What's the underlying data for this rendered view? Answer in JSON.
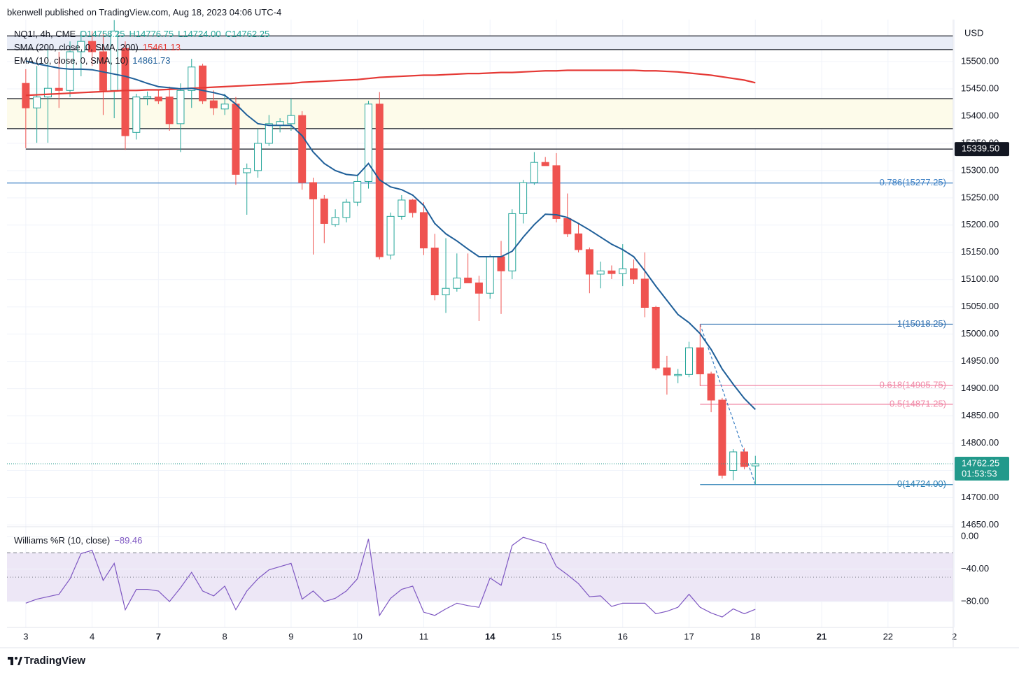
{
  "header": {
    "text": "bkenwell published on TradingView.com, Aug 18, 2023 04:06 UTC-4"
  },
  "footer": {
    "brand": "TradingView"
  },
  "chart_data": [
    {
      "type": "candlestick",
      "currency": "USD",
      "legend": {
        "symbol": "NQ1!, 4h, CME",
        "ohlc_labels": [
          "O14758.25",
          "H14776.75",
          "L14724.00",
          "C14762.25"
        ]
      },
      "x": [
        0,
        1,
        2,
        3,
        4,
        5,
        6,
        7,
        8,
        9,
        10,
        11,
        12,
        13,
        14,
        15,
        16,
        17,
        18,
        19,
        20,
        21,
        22,
        23,
        24,
        25,
        26,
        27,
        28,
        29,
        30,
        31,
        32,
        33,
        34,
        35,
        36,
        37,
        38,
        39,
        40,
        41,
        42,
        43,
        44,
        45,
        46,
        47,
        48,
        49,
        50,
        51,
        52,
        53,
        54,
        55,
        56,
        57,
        58,
        59,
        60,
        61,
        62,
        63,
        64,
        65,
        66
      ],
      "open": [
        15460,
        15415,
        15435,
        15451,
        15447,
        15518,
        15537,
        15518,
        15447,
        15524,
        15370,
        15433,
        15435,
        15435,
        15386,
        15447,
        15492,
        15428,
        15413,
        15422,
        15296,
        15300,
        15350,
        15383,
        15386,
        15401,
        15278,
        15248,
        15201,
        15214,
        15242,
        15280,
        15422,
        15145,
        15216,
        15246,
        15223,
        15158,
        15072,
        15084,
        15103,
        15094,
        15075,
        15142,
        15116,
        15221,
        15278,
        15315,
        15309,
        15212,
        15184,
        15155,
        15110,
        15116,
        15111,
        15120,
        15101,
        15049,
        14938,
        14924,
        14926,
        14975,
        14927,
        14879,
        14750,
        14784,
        14758.25
      ],
      "high": [
        15486,
        15492,
        15524,
        15518,
        15537,
        15556,
        15556,
        15556,
        15576,
        15537,
        15441,
        15445,
        15447,
        15454,
        15460,
        15505,
        15496,
        15447,
        15441,
        15435,
        15313,
        15377,
        15402,
        15396,
        15432,
        15409,
        15287,
        15255,
        15229,
        15248,
        15293,
        15428,
        15444,
        15223,
        15255,
        15248,
        15242,
        15184,
        15176,
        15148,
        15148,
        15107,
        15146,
        15171,
        15229,
        15283,
        15334,
        15325,
        15332,
        15258,
        15203,
        15159,
        15133,
        15126,
        15165,
        15137,
        15150,
        15052,
        14960,
        14936,
        14986,
        15018.25,
        14931,
        14883,
        14789,
        14791,
        14776.75
      ],
      "low": [
        15341,
        15351,
        15351,
        15415,
        15435,
        15473,
        15492,
        15402,
        15396,
        15338,
        15357,
        15420,
        15422,
        15373,
        15334,
        15415,
        15422,
        15402,
        15402,
        15274,
        15219,
        15287,
        15345,
        15370,
        15373,
        15265,
        15146,
        15167,
        15197,
        15205,
        15235,
        15267,
        15137,
        15137,
        15210,
        15214,
        15145,
        15062,
        15039,
        15078,
        15097,
        15024,
        15065,
        15037,
        15101,
        15203,
        15274,
        15313,
        15205,
        15178,
        15150,
        15075,
        15084,
        15101,
        15088,
        15092,
        15031,
        14934,
        14889,
        14910,
        14921,
        14905,
        14857,
        14735,
        14732,
        14752,
        14724
      ],
      "close": [
        15415,
        15435,
        15451,
        15447,
        15518,
        15537,
        15518,
        15447,
        15556,
        15364,
        15435,
        15436,
        15428,
        15386,
        15447,
        15490,
        15428,
        15415,
        15422,
        15293,
        15304,
        15350,
        15386,
        15390,
        15401,
        15278,
        15248,
        15203,
        15214,
        15242,
        15280,
        15422,
        15142,
        15216,
        15246,
        15223,
        15158,
        15072,
        15084,
        15103,
        15094,
        15075,
        15142,
        15116,
        15221,
        15278,
        15315,
        15309,
        15212,
        15184,
        15155,
        15110,
        15116,
        15111,
        15120,
        15101,
        15049,
        14938,
        14925,
        14926,
        14975,
        14927,
        14879,
        14741,
        14784,
        14757,
        14762.25
      ],
      "up_color": "#26a69a",
      "down_color": "#ef5350",
      "series": [
        {
          "name": "SMA (200, close, 0, SMA, 200)",
          "color": "#e53935",
          "last_label": "15461.13",
          "values": [
            15438,
            15439,
            15440,
            15441,
            15442,
            15443,
            15444,
            15445,
            15446,
            15447,
            15447,
            15448,
            15448,
            15449,
            15450,
            15451,
            15452,
            15453,
            15454,
            15455,
            15456,
            15457,
            15458,
            15459,
            15460,
            15462,
            15463,
            15464,
            15465,
            15466,
            15467,
            15469,
            15471,
            15472,
            15473,
            15474,
            15475,
            15475,
            15476,
            15477,
            15478,
            15478,
            15479,
            15480,
            15480,
            15481,
            15482,
            15483,
            15483,
            15484,
            15484,
            15484,
            15484,
            15484,
            15484,
            15484,
            15483,
            15483,
            15482,
            15481,
            15479,
            15477,
            15475,
            15472,
            15469,
            15466,
            15461.13
          ]
        },
        {
          "name": "EMA (10, close, 0, SMA, 10)",
          "color": "#1f5f99",
          "last_label": "14861.73",
          "values": [
            15501,
            15496,
            15492,
            15488,
            15486,
            15486,
            15485,
            15481,
            15477,
            15473,
            15467,
            15460,
            15454,
            15452,
            15450,
            15451,
            15447,
            15443,
            15438,
            15422,
            15402,
            15386,
            15383,
            15383,
            15383,
            15364,
            15334,
            15313,
            15300,
            15293,
            15291,
            15313,
            15283,
            15270,
            15265,
            15255,
            15236,
            15203,
            15184,
            15171,
            15156,
            15142,
            15142,
            15142,
            15152,
            15178,
            15201,
            15220,
            15219,
            15214,
            15203,
            15191,
            15178,
            15165,
            15155,
            15142,
            15116,
            15088,
            15062,
            15036,
            15021,
            15001,
            14972,
            14936,
            14908,
            14882,
            14861.73
          ]
        }
      ],
      "hlines": [
        15547,
        15522,
        15432,
        15377,
        {
          "value": 15339.5,
          "from": 0
        }
      ],
      "hline_color": "#131722",
      "zones": [
        {
          "from": 15522,
          "to": 15547,
          "color": "#e9edf7"
        },
        {
          "from": 15377,
          "to": 15432,
          "color": "#fdfbea"
        }
      ],
      "fib": {
        "levels": [
          {
            "value": 15277.25,
            "label": "0.786(15277.25)",
            "color": "#3b7fc4"
          },
          {
            "value": 15018.25,
            "label": "1(15018.25)",
            "color": "#2f6fb0",
            "from": 61
          },
          {
            "value": 14905.75,
            "label": "0.618(14905.75)",
            "color": "#f08aa8",
            "from": 61
          },
          {
            "value": 14871.25,
            "label": "0.5(14871.25)",
            "color": "#f08aa8",
            "from": 61
          },
          {
            "value": 14724,
            "label": "0(14724.00)",
            "color": "#2b7fb5",
            "from": 61
          }
        ],
        "trend": {
          "x": [
            61,
            66
          ],
          "values": [
            15018.25,
            14724
          ],
          "color": "#3b7fc4"
        }
      },
      "price_badges": [
        {
          "value": 15339.5,
          "label": "15339.50",
          "color": "#131722"
        },
        {
          "value": 14762.25,
          "label": "14762.25",
          "countdown": "01:53:53",
          "color": "#22998b"
        }
      ],
      "xlim": [
        -1.7,
        83.9
      ],
      "ylim": [
        14648,
        15577
      ],
      "yticks": [
        {
          "value": 14650,
          "label": "14650.00"
        },
        {
          "value": 14700,
          "label": "14700.00"
        },
        {
          "value": 14750,
          "label": "14750.00"
        },
        {
          "value": 14800,
          "label": "14800.00"
        },
        {
          "value": 14850,
          "label": "14850.00"
        },
        {
          "value": 14900,
          "label": "14900.00"
        },
        {
          "value": 14950,
          "label": "14950.00"
        },
        {
          "value": 15000,
          "label": "15000.00"
        },
        {
          "value": 15050,
          "label": "15050.00"
        },
        {
          "value": 15100,
          "label": "15100.00"
        },
        {
          "value": 15150,
          "label": "15150.00"
        },
        {
          "value": 15200,
          "label": "15200.00"
        },
        {
          "value": 15250,
          "label": "15250.00"
        },
        {
          "value": 15300,
          "label": "15300.00"
        },
        {
          "value": 15350,
          "label": "15350.00"
        },
        {
          "value": 15400,
          "label": "15400.00"
        },
        {
          "value": 15450,
          "label": "15450.00"
        },
        {
          "value": 15500,
          "label": "15500.00"
        }
      ],
      "xticks": [
        {
          "value": 0,
          "label": "3"
        },
        {
          "value": 6,
          "label": "4"
        },
        {
          "value": 12,
          "label": "7",
          "bold": true
        },
        {
          "value": 18,
          "label": "8"
        },
        {
          "value": 24,
          "label": "9"
        },
        {
          "value": 30,
          "label": "10"
        },
        {
          "value": 36,
          "label": "11"
        },
        {
          "value": 42,
          "label": "14",
          "bold": true
        },
        {
          "value": 48,
          "label": "15"
        },
        {
          "value": 54,
          "label": "16"
        },
        {
          "value": 60,
          "label": "17"
        },
        {
          "value": 66,
          "label": "18"
        },
        {
          "value": 72,
          "label": "21",
          "bold": true
        },
        {
          "value": 78,
          "label": "22"
        },
        {
          "value": 84,
          "label": "2"
        }
      ],
      "grid": true
    },
    {
      "type": "line",
      "title": "Williams %R (10, close)",
      "last_label": "−89.46",
      "color": "#7e57c2",
      "x": [
        0,
        1,
        2,
        3,
        4,
        5,
        6,
        7,
        8,
        9,
        10,
        11,
        12,
        13,
        14,
        15,
        16,
        17,
        18,
        19,
        20,
        21,
        22,
        23,
        24,
        25,
        26,
        27,
        28,
        29,
        30,
        31,
        32,
        33,
        34,
        35,
        36,
        37,
        38,
        39,
        40,
        41,
        42,
        43,
        44,
        45,
        46,
        47,
        48,
        49,
        50,
        51,
        52,
        53,
        54,
        55,
        56,
        57,
        58,
        59,
        60,
        61,
        62,
        63,
        64,
        65,
        66
      ],
      "values": [
        -82,
        -77,
        -74,
        -71,
        -52,
        -21,
        -17,
        -54,
        -33,
        -90,
        -65,
        -65,
        -67,
        -80,
        -63,
        -44,
        -67,
        -73,
        -61,
        -90,
        -67,
        -52,
        -41,
        -37,
        -33,
        -77,
        -67,
        -80,
        -76,
        -67,
        -52,
        -3,
        -97,
        -76,
        -65,
        -61,
        -93,
        -97,
        -89,
        -82,
        -85,
        -87,
        -51,
        -60,
        -11,
        -1,
        -5,
        -9,
        -37,
        -47,
        -58,
        -74,
        -73,
        -86,
        -82,
        -82,
        -82,
        -95,
        -92,
        -87,
        -71,
        -87,
        -94,
        -99,
        -89,
        -95,
        -89.46
      ],
      "bands": [
        -20,
        -50,
        -80
      ],
      "band_color": "#ede7f6",
      "xlim": [
        -1.7,
        83.9
      ],
      "ylim": [
        -111.8,
        8.6
      ],
      "yticks": [
        {
          "value": 0,
          "label": "0.00"
        },
        {
          "value": -40,
          "label": "−40.00"
        },
        {
          "value": -80,
          "label": "−80.00"
        }
      ]
    }
  ]
}
